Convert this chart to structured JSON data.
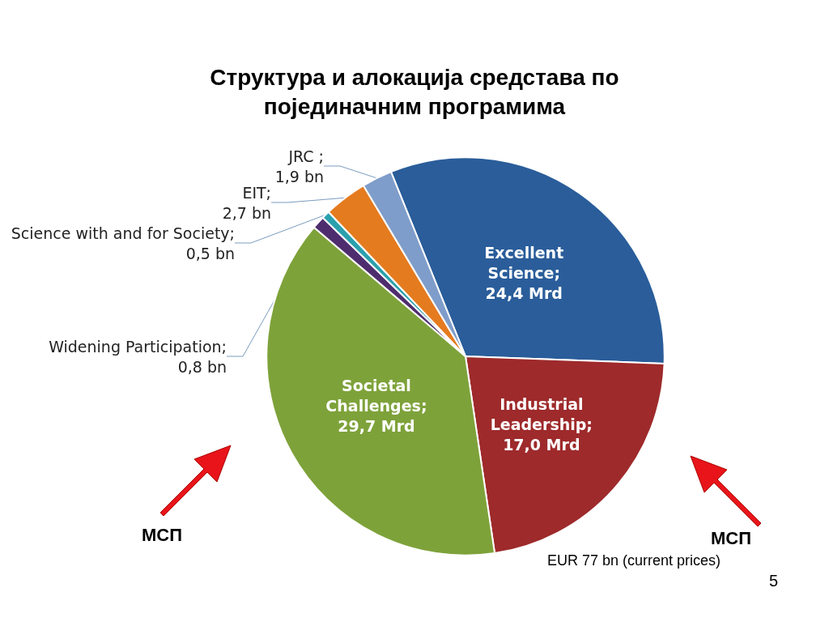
{
  "chart_data": {
    "type": "pie",
    "title": "Структура и алокација средстава по\nпојединачним програмима",
    "categories": [
      "Excellent Science",
      "Industrial Leadership",
      "Societal Challenges",
      "Widening Participation",
      "Science with and for Society",
      "EIT",
      "JRC "
    ],
    "values": [
      24.4,
      17.0,
      29.7,
      0.8,
      0.5,
      2.7,
      1.9
    ],
    "value_labels": [
      "; 24,4 Mrd",
      "; 17,0 Mrd",
      "; 29,7 Mrd",
      "; 0,8 bn",
      "; 0,5 bn",
      "; 2,7 bn",
      "; 1,9 bn"
    ],
    "colors": [
      "#2a5d9a",
      "#9e2a2b",
      "#7ea23a",
      "#4e2d6e",
      "#2aa0ad",
      "#e57b1f",
      "#7f9dca"
    ],
    "legend": false,
    "annotations": [
      "МСП",
      "МСП",
      "EUR 77 bn (current prices)",
      "5"
    ]
  }
}
